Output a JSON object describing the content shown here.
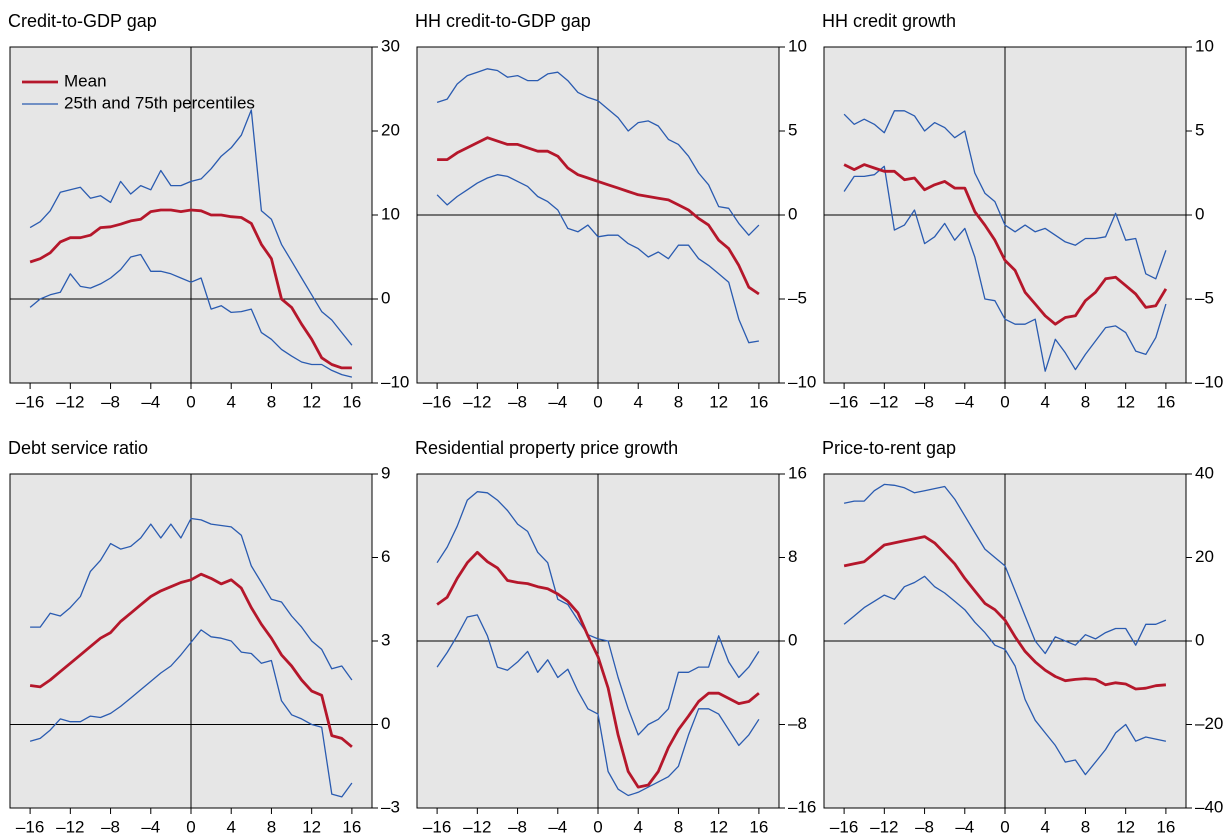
{
  "chart_data": [
    {
      "type": "line",
      "title": "Credit-to-GDP gap",
      "legend": "upper left",
      "x": [
        -16,
        -15,
        -14,
        -13,
        -12,
        -11,
        -10,
        -9,
        -8,
        -7,
        -6,
        -5,
        -4,
        -3,
        -2,
        -1,
        0,
        1,
        2,
        3,
        4,
        5,
        6,
        7,
        8,
        9,
        10,
        11,
        12,
        13,
        14,
        15,
        16
      ],
      "xlim": [
        -18,
        18
      ],
      "xticks": [
        {
          "value": -16,
          "label": "–16"
        },
        {
          "value": -12,
          "label": "–12"
        },
        {
          "value": -8,
          "label": "–8"
        },
        {
          "value": -4,
          "label": "–4"
        },
        0,
        4,
        8,
        12,
        16
      ],
      "ylim": [
        -10,
        30
      ],
      "yticks": [
        {
          "value": -10,
          "label": "–10"
        },
        0,
        10,
        20,
        30
      ],
      "series": [
        {
          "name": "Mean",
          "color": "#b5172b",
          "values": [
            4.4,
            4.8,
            5.5,
            6.8,
            7.3,
            7.3,
            7.6,
            8.5,
            8.6,
            8.9,
            9.3,
            9.5,
            10.4,
            10.6,
            10.6,
            10.4,
            10.6,
            10.5,
            10,
            10,
            9.8,
            9.7,
            9,
            6.5,
            4.8,
            0,
            -1,
            -3,
            -4.8,
            -7,
            -7.8,
            -8.2,
            -8.2
          ]
        },
        {
          "name": "25th and 75th percentiles",
          "color": "#2a5bb0",
          "p75": [
            8.5,
            9.2,
            10.5,
            12.7,
            13,
            13.3,
            12,
            12.3,
            11.5,
            14,
            12.5,
            13.5,
            13,
            15.3,
            13.5,
            13.5,
            14,
            14.3,
            15.5,
            17,
            18,
            19.5,
            22.5,
            10.5,
            9.5,
            6.5,
            4.5,
            2.5,
            0.5,
            -1.5,
            -2.5,
            -4,
            -5.5
          ],
          "p25": [
            -1,
            0,
            0.5,
            0.8,
            3,
            1.5,
            1.3,
            1.8,
            2.5,
            3.5,
            5,
            5.3,
            3.3,
            3.3,
            3,
            2.5,
            2,
            2.5,
            -1.2,
            -0.8,
            -1.6,
            -1.5,
            -1.2,
            -4,
            -4.8,
            -6,
            -6.8,
            -7.5,
            -7.8,
            -7.8,
            -8.5,
            -9,
            -9.3
          ]
        }
      ]
    },
    {
      "type": "line",
      "title": "HH credit-to-GDP gap",
      "x": [
        -16,
        -15,
        -14,
        -13,
        -12,
        -11,
        -10,
        -9,
        -8,
        -7,
        -6,
        -5,
        -4,
        -3,
        -2,
        -1,
        0,
        1,
        2,
        3,
        4,
        5,
        6,
        7,
        8,
        9,
        10,
        11,
        12,
        13,
        14,
        15,
        16
      ],
      "xlim": [
        -18,
        18
      ],
      "xticks": [
        {
          "value": -16,
          "label": "–16"
        },
        {
          "value": -12,
          "label": "–12"
        },
        {
          "value": -8,
          "label": "–8"
        },
        {
          "value": -4,
          "label": "–4"
        },
        0,
        4,
        8,
        12,
        16
      ],
      "ylim": [
        -10,
        10
      ],
      "yticks": [
        {
          "value": -10,
          "label": "–10"
        },
        {
          "value": -5,
          "label": "–5"
        },
        0,
        5,
        10
      ],
      "series": [
        {
          "color": "#b5172b",
          "values": [
            3.3,
            3.3,
            3.7,
            4,
            4.3,
            4.6,
            4.4,
            4.2,
            4.2,
            4,
            3.8,
            3.8,
            3.5,
            2.8,
            2.4,
            2.2,
            2,
            1.8,
            1.6,
            1.4,
            1.2,
            1.1,
            1,
            0.9,
            0.6,
            0.3,
            -0.2,
            -0.6,
            -1.5,
            -2,
            -3,
            -4.3,
            -4.7
          ]
        },
        {
          "color": "#2a5bb0",
          "p75": [
            6.7,
            6.9,
            7.8,
            8.3,
            8.5,
            8.7,
            8.6,
            8.2,
            8.3,
            8,
            8,
            8.4,
            8.5,
            8,
            7.3,
            7,
            6.8,
            6.3,
            5.8,
            5,
            5.5,
            5.6,
            5.3,
            4.5,
            4.2,
            3.5,
            2.5,
            1.8,
            0.5,
            0.4,
            -0.5,
            -1.2,
            -0.6
          ],
          "p25": [
            1.2,
            0.6,
            1.1,
            1.5,
            1.9,
            2.2,
            2.4,
            2.3,
            2,
            1.7,
            1.1,
            0.8,
            0.3,
            -0.8,
            -1,
            -0.6,
            -1.3,
            -1.2,
            -1.2,
            -1.7,
            -2,
            -2.5,
            -2.2,
            -2.6,
            -1.8,
            -1.8,
            -2.6,
            -3,
            -3.5,
            -4,
            -6.2,
            -7.6,
            -7.5
          ]
        }
      ]
    },
    {
      "type": "line",
      "title": "HH credit growth",
      "x": [
        -16,
        -15,
        -14,
        -13,
        -12,
        -11,
        -10,
        -9,
        -8,
        -7,
        -6,
        -5,
        -4,
        -3,
        -2,
        -1,
        0,
        1,
        2,
        3,
        4,
        5,
        6,
        7,
        8,
        9,
        10,
        11,
        12,
        13,
        14,
        15,
        16
      ],
      "xlim": [
        -18,
        18
      ],
      "xticks": [
        {
          "value": -16,
          "label": "–16"
        },
        {
          "value": -12,
          "label": "–12"
        },
        {
          "value": -8,
          "label": "–8"
        },
        {
          "value": -4,
          "label": "–4"
        },
        0,
        4,
        8,
        12,
        16
      ],
      "ylim": [
        -10,
        10
      ],
      "yticks": [
        {
          "value": -10,
          "label": "–10"
        },
        {
          "value": -5,
          "label": "–5"
        },
        0,
        5,
        10
      ],
      "series": [
        {
          "color": "#b5172b",
          "values": [
            3,
            2.7,
            3,
            2.8,
            2.6,
            2.6,
            2.1,
            2.2,
            1.5,
            1.8,
            2,
            1.6,
            1.6,
            0.2,
            -0.6,
            -1.5,
            -2.7,
            -3.3,
            -4.6,
            -5.3,
            -6,
            -6.5,
            -6.1,
            -6,
            -5.1,
            -4.6,
            -3.8,
            -3.7,
            -4.2,
            -4.7,
            -5.5,
            -5.4,
            -4.4
          ]
        },
        {
          "color": "#2a5bb0",
          "p75": [
            6,
            5.4,
            5.7,
            5.4,
            4.9,
            6.2,
            6.2,
            5.9,
            5,
            5.5,
            5.2,
            4.6,
            5,
            2.5,
            1.3,
            0.8,
            -0.6,
            -1,
            -0.6,
            -1,
            -0.8,
            -1.2,
            -1.6,
            -1.8,
            -1.4,
            -1.4,
            -1.3,
            0.1,
            -1.5,
            -1.4,
            -3.5,
            -3.8,
            -2.1
          ],
          "p25": [
            1.4,
            2.3,
            2.3,
            2.4,
            2.9,
            -0.9,
            -0.6,
            0.3,
            -1.7,
            -1.3,
            -0.5,
            -1.5,
            -0.8,
            -2.5,
            -5,
            -5.1,
            -6.2,
            -6.5,
            -6.5,
            -6.2,
            -9.3,
            -7.4,
            -8.2,
            -9.2,
            -8.3,
            -7.5,
            -6.7,
            -6.6,
            -7,
            -8.1,
            -8.3,
            -7.3,
            -5.3
          ]
        }
      ]
    },
    {
      "type": "line",
      "title": "Debt service ratio",
      "x": [
        -16,
        -15,
        -14,
        -13,
        -12,
        -11,
        -10,
        -9,
        -8,
        -7,
        -6,
        -5,
        -4,
        -3,
        -2,
        -1,
        0,
        1,
        2,
        3,
        4,
        5,
        6,
        7,
        8,
        9,
        10,
        11,
        12,
        13,
        14,
        15,
        16
      ],
      "xlim": [
        -18,
        18
      ],
      "xticks": [
        {
          "value": -16,
          "label": "–16"
        },
        {
          "value": -12,
          "label": "–12"
        },
        {
          "value": -8,
          "label": "–8"
        },
        {
          "value": -4,
          "label": "–4"
        },
        0,
        4,
        8,
        12,
        16
      ],
      "ylim": [
        -3,
        9
      ],
      "yticks": [
        {
          "value": -3,
          "label": "–3"
        },
        0,
        3,
        6,
        9
      ],
      "series": [
        {
          "color": "#b5172b",
          "values": [
            1.4,
            1.35,
            1.6,
            1.9,
            2.2,
            2.5,
            2.8,
            3.1,
            3.3,
            3.7,
            4,
            4.3,
            4.6,
            4.8,
            4.95,
            5.1,
            5.2,
            5.4,
            5.25,
            5.05,
            5.2,
            4.9,
            4.2,
            3.6,
            3.1,
            2.5,
            2.1,
            1.6,
            1.2,
            1.05,
            -0.4,
            -0.5,
            -0.8
          ]
        },
        {
          "color": "#2a5bb0",
          "p75": [
            3.5,
            3.5,
            4,
            3.9,
            4.2,
            4.6,
            5.5,
            5.9,
            6.5,
            6.3,
            6.4,
            6.7,
            7.2,
            6.7,
            7.2,
            6.7,
            7.4,
            7.35,
            7.2,
            7.15,
            7.1,
            6.8,
            5.7,
            5.1,
            4.5,
            4.4,
            3.9,
            3.5,
            3,
            2.7,
            2,
            2.1,
            1.6
          ],
          "p25": [
            -0.6,
            -0.5,
            -0.2,
            0.2,
            0.1,
            0.1,
            0.3,
            0.25,
            0.4,
            0.65,
            0.95,
            1.25,
            1.55,
            1.85,
            2.1,
            2.5,
            2.95,
            3.4,
            3.15,
            3.1,
            3,
            2.6,
            2.55,
            2.2,
            2.3,
            0.85,
            0.35,
            0.2,
            0,
            -0.1,
            -2.5,
            -2.6,
            -2.1
          ]
        }
      ]
    },
    {
      "type": "line",
      "title": "Residential property price growth",
      "x": [
        -16,
        -15,
        -14,
        -13,
        -12,
        -11,
        -10,
        -9,
        -8,
        -7,
        -6,
        -5,
        -4,
        -3,
        -2,
        -1,
        0,
        1,
        2,
        3,
        4,
        5,
        6,
        7,
        8,
        9,
        10,
        11,
        12,
        13,
        14,
        15,
        16
      ],
      "xlim": [
        -18,
        18
      ],
      "xticks": [
        {
          "value": -16,
          "label": "–16"
        },
        {
          "value": -12,
          "label": "–12"
        },
        {
          "value": -8,
          "label": "–8"
        },
        {
          "value": -4,
          "label": "–4"
        },
        0,
        4,
        8,
        12,
        16
      ],
      "ylim": [
        -16,
        16
      ],
      "yticks": [
        {
          "value": -16,
          "label": "–16"
        },
        {
          "value": -8,
          "label": "–8"
        },
        0,
        8,
        16
      ],
      "series": [
        {
          "color": "#b5172b",
          "values": [
            3.5,
            4.2,
            6,
            7.5,
            8.5,
            7.6,
            7,
            5.8,
            5.6,
            5.5,
            5.2,
            5,
            4.5,
            3.8,
            2.7,
            0.5,
            -1.5,
            -4.5,
            -9,
            -12.5,
            -14,
            -13.8,
            -12.5,
            -10.2,
            -8.5,
            -7.2,
            -5.8,
            -5,
            -5,
            -5.5,
            -6,
            -5.8,
            -5
          ]
        },
        {
          "color": "#2a5bb0",
          "p75": [
            7.5,
            9,
            11,
            13.5,
            14.3,
            14.2,
            13.5,
            12.5,
            11.2,
            10.5,
            8.5,
            7.5,
            4,
            3.5,
            2,
            0.6,
            0.2,
            0,
            -3.5,
            -6.5,
            -9,
            -8,
            -7.5,
            -6.5,
            -3,
            -3,
            -2.5,
            -2.5,
            0.5,
            -2,
            -3.5,
            -2.5,
            -1
          ],
          "p25": [
            -2.5,
            -1.1,
            0.5,
            2.3,
            2.5,
            0.5,
            -2.5,
            -2.8,
            -2,
            -1,
            -3,
            -1.8,
            -3.5,
            -2.7,
            -4.8,
            -6.5,
            -7,
            -12.5,
            -14.2,
            -14.8,
            -14.5,
            -14,
            -13.5,
            -13,
            -12,
            -9,
            -6.5,
            -6.5,
            -7,
            -8.5,
            -10,
            -9,
            -7.5
          ]
        }
      ]
    },
    {
      "type": "line",
      "title": "Price-to-rent gap",
      "x": [
        -16,
        -15,
        -14,
        -13,
        -12,
        -11,
        -10,
        -9,
        -8,
        -7,
        -6,
        -5,
        -4,
        -3,
        -2,
        -1,
        0,
        1,
        2,
        3,
        4,
        5,
        6,
        7,
        8,
        9,
        10,
        11,
        12,
        13,
        14,
        15,
        16
      ],
      "xlim": [
        -18,
        18
      ],
      "xticks": [
        {
          "value": -16,
          "label": "–16"
        },
        {
          "value": -12,
          "label": "–12"
        },
        {
          "value": -8,
          "label": "–8"
        },
        {
          "value": -4,
          "label": "–4"
        },
        0,
        4,
        8,
        12,
        16
      ],
      "ylim": [
        -40,
        40
      ],
      "yticks": [
        {
          "value": -40,
          "label": "–40"
        },
        {
          "value": -20,
          "label": "–20"
        },
        0,
        20,
        40
      ],
      "series": [
        {
          "color": "#b5172b",
          "values": [
            18,
            18.5,
            19,
            21,
            23,
            23.5,
            24,
            24.5,
            25,
            23.5,
            21,
            18.5,
            15,
            12,
            9,
            7.5,
            5,
            1,
            -2.5,
            -5,
            -7,
            -8.5,
            -9.5,
            -9.2,
            -9,
            -9.2,
            -10.5,
            -10,
            -10.3,
            -11.5,
            -11.3,
            -10.7,
            -10.5
          ]
        },
        {
          "color": "#2a5bb0",
          "p75": [
            33,
            33.5,
            33.5,
            36,
            37.5,
            37.3,
            36.7,
            35.5,
            36,
            36.5,
            37,
            34,
            30,
            26,
            22,
            20,
            18,
            12,
            6,
            0,
            -3,
            1,
            0,
            -1,
            1.5,
            0.5,
            2,
            3,
            3,
            -1,
            4,
            4,
            5
          ],
          "p25": [
            4,
            6,
            8,
            9.5,
            11,
            10,
            13,
            14,
            15.5,
            13,
            11.5,
            9.5,
            7.5,
            4.5,
            2,
            -1,
            -2,
            -6,
            -14,
            -19,
            -22,
            -25,
            -29,
            -28.5,
            -32,
            -29,
            -26,
            -22,
            -20,
            -24,
            -23,
            -23.5,
            -24
          ]
        }
      ]
    }
  ]
}
